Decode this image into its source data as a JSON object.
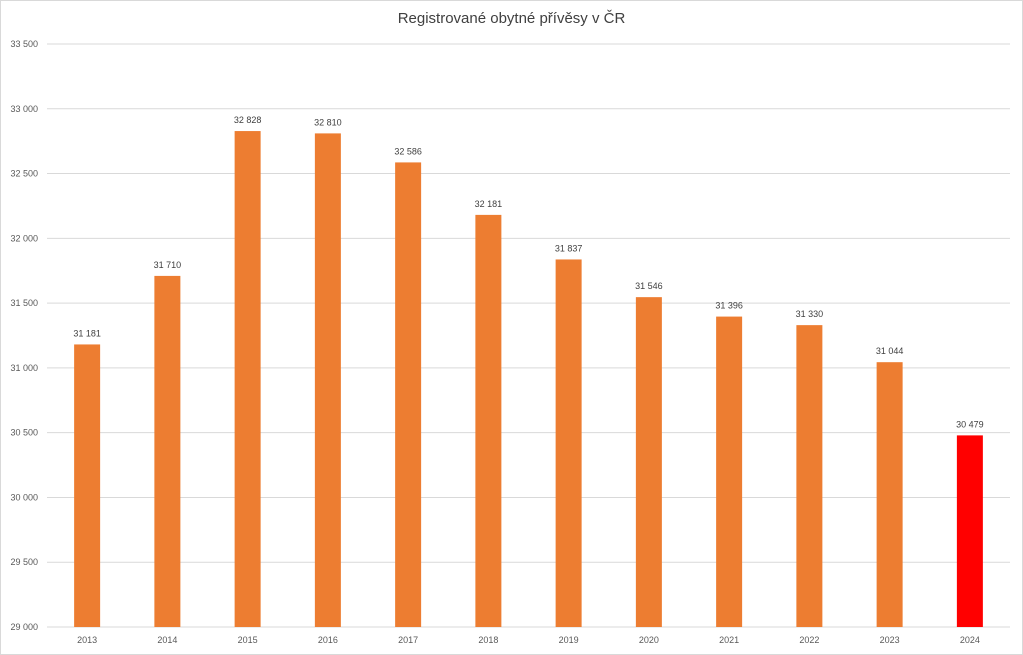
{
  "chart_data": {
    "type": "bar",
    "title": "Registrované obytné přívěsy v ČR",
    "xlabel": "",
    "ylabel": "",
    "categories": [
      "2013",
      "2014",
      "2015",
      "2016",
      "2017",
      "2018",
      "2019",
      "2020",
      "2021",
      "2022",
      "2023",
      "2024"
    ],
    "values": [
      31181,
      31710,
      32828,
      32810,
      32586,
      32181,
      31837,
      31546,
      31396,
      31330,
      31044,
      30479
    ],
    "data_labels": [
      "31 181",
      "31 710",
      "32 828",
      "32 810",
      "32 586",
      "32 181",
      "31 837",
      "31 546",
      "31 396",
      "31 330",
      "31 044",
      "30 479"
    ],
    "ylim": [
      29000,
      33500
    ],
    "yticks": [
      29000,
      29500,
      30000,
      30500,
      31000,
      31500,
      32000,
      32500,
      33000,
      33500
    ],
    "ytick_labels": [
      "29 000",
      "29 500",
      "30 000",
      "30 500",
      "31 000",
      "31 500",
      "32 000",
      "32 500",
      "33 000",
      "33 500"
    ],
    "grid": true,
    "legend": "none",
    "colors": {
      "bar": "#ED7D31",
      "highlight": "#FF0000",
      "highlight_category": "2024",
      "grid": "#D9D9D9"
    }
  }
}
